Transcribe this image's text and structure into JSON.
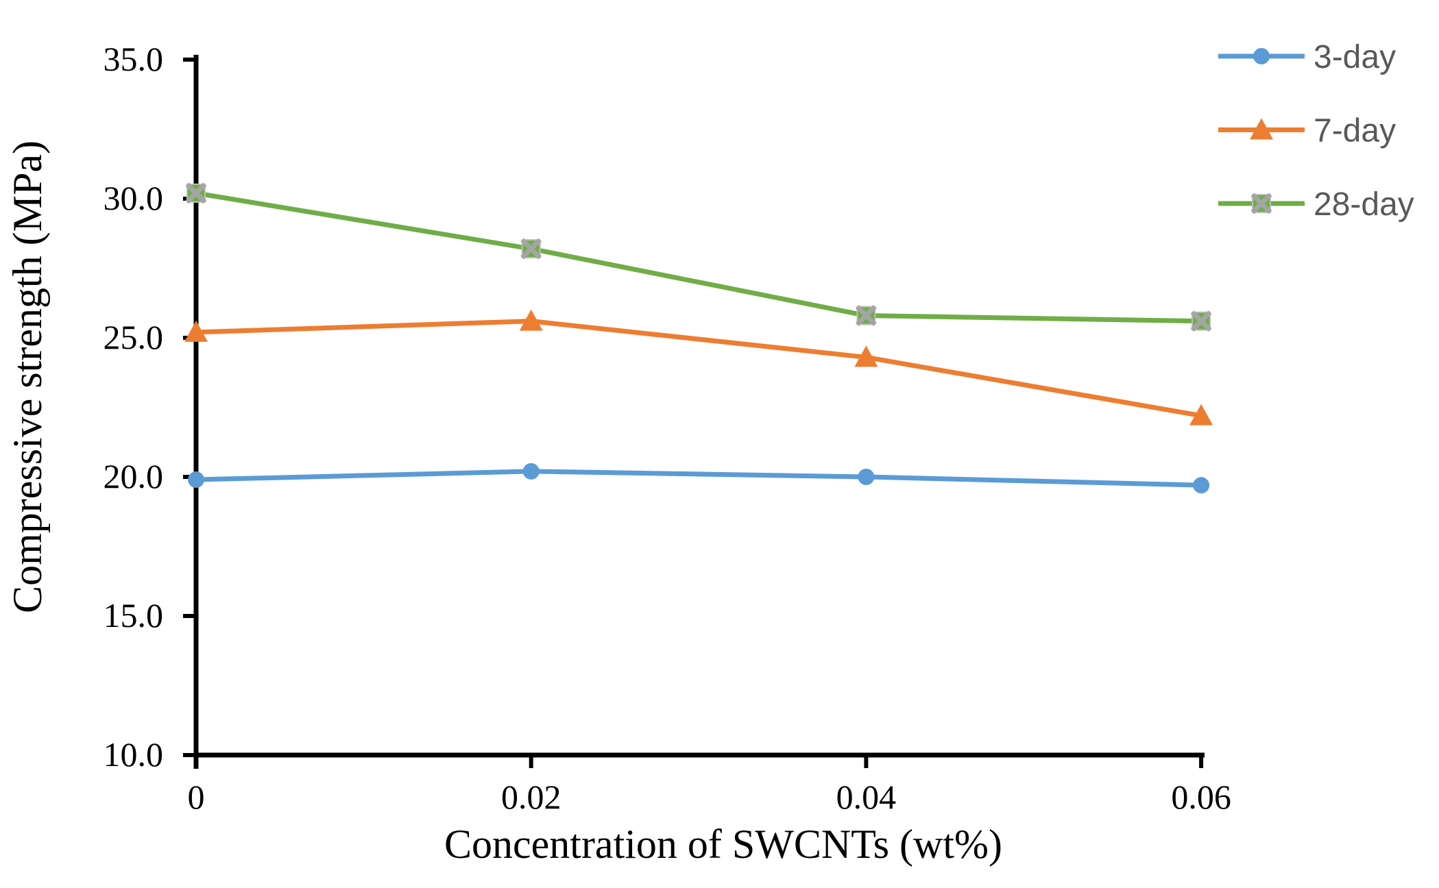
{
  "figure": {
    "background_color": "#ffffff",
    "axis_color": "#000000",
    "legend_text_color": "#595959"
  },
  "chart_data": {
    "type": "line",
    "title": "",
    "xlabel": "Concentration of SWCNTs (wt%)",
    "ylabel": "Compressive strength (MPa)",
    "categories": [
      "0",
      "0.02",
      "0.04",
      "0.06"
    ],
    "x_values": [
      0,
      0.02,
      0.04,
      0.06
    ],
    "ylim": [
      10,
      35
    ],
    "y_tick_step": 5,
    "y_tick_labels": [
      "35.0",
      "30.0",
      "25.0",
      "20.0",
      "15.0",
      "10.0"
    ],
    "grid": false,
    "legend_position": "top-right",
    "series": [
      {
        "name": "3-day",
        "color": "#5B9BD5",
        "marker": "circle",
        "values": [
          19.9,
          20.2,
          20.0,
          19.7
        ]
      },
      {
        "name": "7-day",
        "color": "#ED7D31",
        "marker": "triangle",
        "values": [
          25.2,
          25.6,
          24.3,
          22.2
        ]
      },
      {
        "name": "28-day",
        "color": "#70AD47",
        "marker": "x-square",
        "marker_fill": "#A5A5A5",
        "values": [
          30.2,
          28.2,
          25.8,
          25.6
        ]
      }
    ]
  }
}
